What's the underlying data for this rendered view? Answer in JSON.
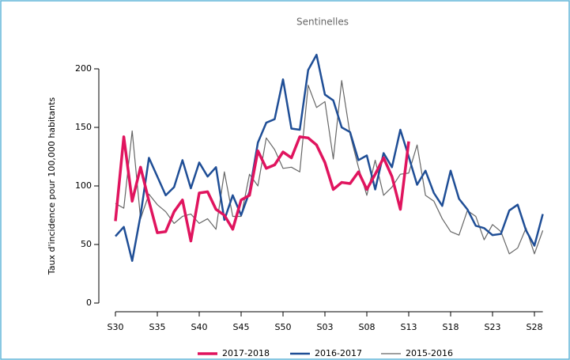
{
  "chart_data": {
    "type": "line",
    "title": "Sentinelles",
    "y_label": "Taux d'incidence pour 100,000 habitants",
    "categories": [
      "S30",
      null,
      null,
      null,
      null,
      "S35",
      null,
      null,
      null,
      null,
      "S40",
      null,
      null,
      null,
      null,
      "S45",
      null,
      null,
      null,
      null,
      "S50",
      null,
      null,
      null,
      null,
      "S03",
      null,
      null,
      null,
      null,
      "S08",
      null,
      null,
      null,
      null,
      "S13",
      null,
      null,
      null,
      null,
      "S18",
      null,
      null,
      null,
      null,
      "S23",
      null,
      null,
      null,
      null,
      "S28",
      null
    ],
    "series": [
      {
        "name": "2017-2018",
        "color": "#e0145e",
        "width": 3.5,
        "values": [
          70,
          142,
          87,
          116,
          87,
          60,
          61,
          78,
          88,
          53,
          94,
          95,
          80,
          75,
          63,
          88,
          92,
          130,
          115,
          118,
          129,
          124,
          142,
          141,
          135,
          120,
          97,
          103,
          102,
          112,
          97,
          110,
          124,
          108,
          80,
          138,
          null,
          null,
          null,
          null,
          null,
          null,
          null,
          null,
          null,
          null,
          null,
          null,
          null,
          null,
          null,
          null
        ]
      },
      {
        "name": "2016-2017",
        "color": "#1f4e96",
        "width": 2.5,
        "values": [
          57,
          65,
          36,
          75,
          124,
          108,
          92,
          99,
          122,
          98,
          120,
          108,
          116,
          71,
          92,
          75,
          95,
          137,
          154,
          157,
          191,
          149,
          148,
          199,
          212,
          178,
          173,
          150,
          146,
          122,
          126,
          97,
          128,
          116,
          148,
          125,
          101,
          113,
          94,
          83,
          113,
          89,
          80,
          66,
          64,
          58,
          59,
          79,
          84,
          62,
          49,
          76
        ]
      },
      {
        "name": "2015-2016",
        "color": "#666666",
        "width": 1.2,
        "values": [
          85,
          81,
          147,
          72,
          93,
          84,
          78,
          68,
          74,
          76,
          68,
          72,
          63,
          112,
          74,
          74,
          110,
          100,
          141,
          131,
          115,
          116,
          112,
          186,
          167,
          172,
          123,
          190,
          144,
          116,
          92,
          122,
          92,
          99,
          110,
          111,
          135,
          92,
          87,
          72,
          61,
          58,
          79,
          74,
          54,
          67,
          61,
          42,
          47,
          64,
          42,
          62
        ]
      }
    ],
    "ylim": [
      0,
      200
    ],
    "yticks": [
      0,
      50,
      100,
      150,
      200
    ]
  }
}
